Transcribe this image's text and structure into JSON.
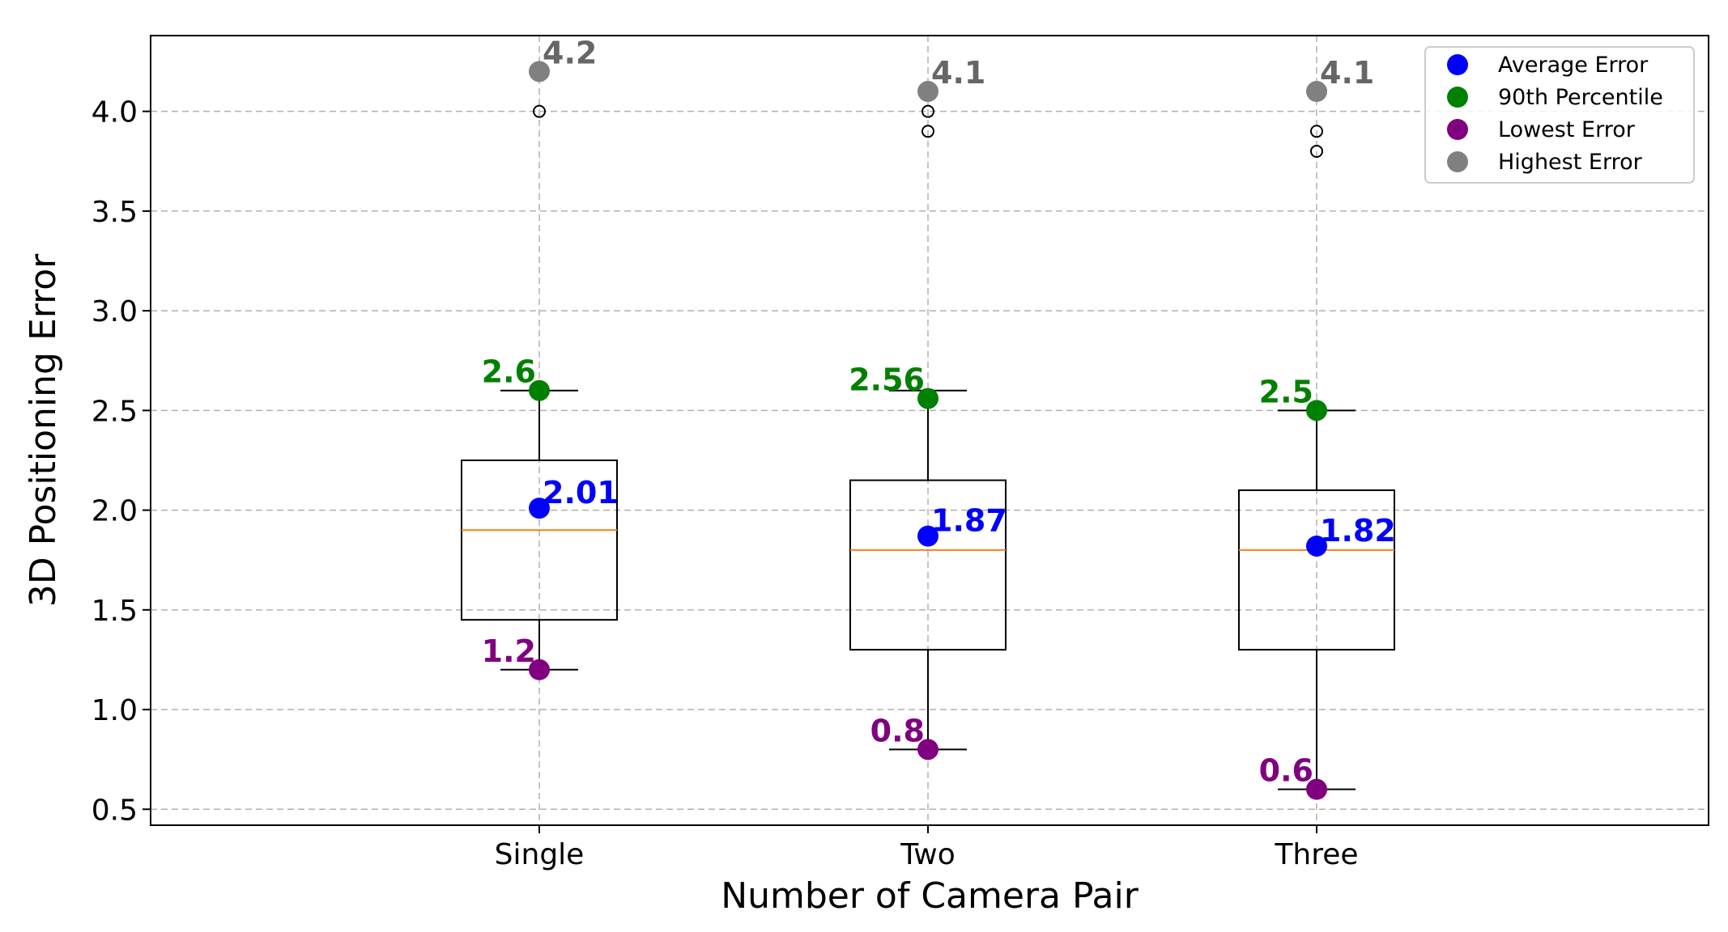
{
  "chart_data": {
    "type": "box",
    "xlabel": "Number of Camera Pair",
    "ylabel": "3D Positioning Error",
    "categories": [
      "Single",
      "Two",
      "Three"
    ],
    "ylim": [
      0.42,
      4.38
    ],
    "yticks": [
      0.5,
      1.0,
      1.5,
      2.0,
      2.5,
      3.0,
      3.5,
      4.0
    ],
    "ytick_labels": [
      "0.5",
      "1.0",
      "1.5",
      "2.0",
      "2.5",
      "3.0",
      "3.5",
      "4.0"
    ],
    "grid": true,
    "legend_position": "top-right",
    "boxes": [
      {
        "category": "Single",
        "whisker_low": 1.2,
        "q1": 1.45,
        "median": 1.9,
        "q3": 2.25,
        "whisker_high": 2.6,
        "outliers": [
          4.0
        ]
      },
      {
        "category": "Two",
        "whisker_low": 0.8,
        "q1": 1.3,
        "median": 1.8,
        "q3": 2.15,
        "whisker_high": 2.6,
        "outliers": [
          3.9,
          4.0
        ]
      },
      {
        "category": "Three",
        "whisker_low": 0.6,
        "q1": 1.3,
        "median": 1.8,
        "q3": 2.1,
        "whisker_high": 2.5,
        "outliers": [
          3.8,
          3.9
        ]
      }
    ],
    "series": [
      {
        "name": "Average Error",
        "color": "#0000ff",
        "values": [
          2.01,
          1.87,
          1.82
        ],
        "labels": [
          "2.01",
          "1.87",
          "1.82"
        ]
      },
      {
        "name": "90th Percentile",
        "color": "#008000",
        "values": [
          2.6,
          2.56,
          2.5
        ],
        "labels": [
          "2.6",
          "2.56",
          "2.5"
        ]
      },
      {
        "name": "Lowest Error",
        "color": "#800080",
        "values": [
          1.2,
          0.8,
          0.6
        ],
        "labels": [
          "1.2",
          "0.8",
          "0.6"
        ]
      },
      {
        "name": "Highest Error",
        "color": "#808080",
        "values": [
          4.2,
          4.1,
          4.1
        ],
        "labels": [
          "4.2",
          "4.1",
          "4.1"
        ]
      }
    ],
    "colors": {
      "median": "#ff7f0e",
      "box": "#000000",
      "grid": "#b0b0b0",
      "highest_label": "#666666"
    }
  }
}
